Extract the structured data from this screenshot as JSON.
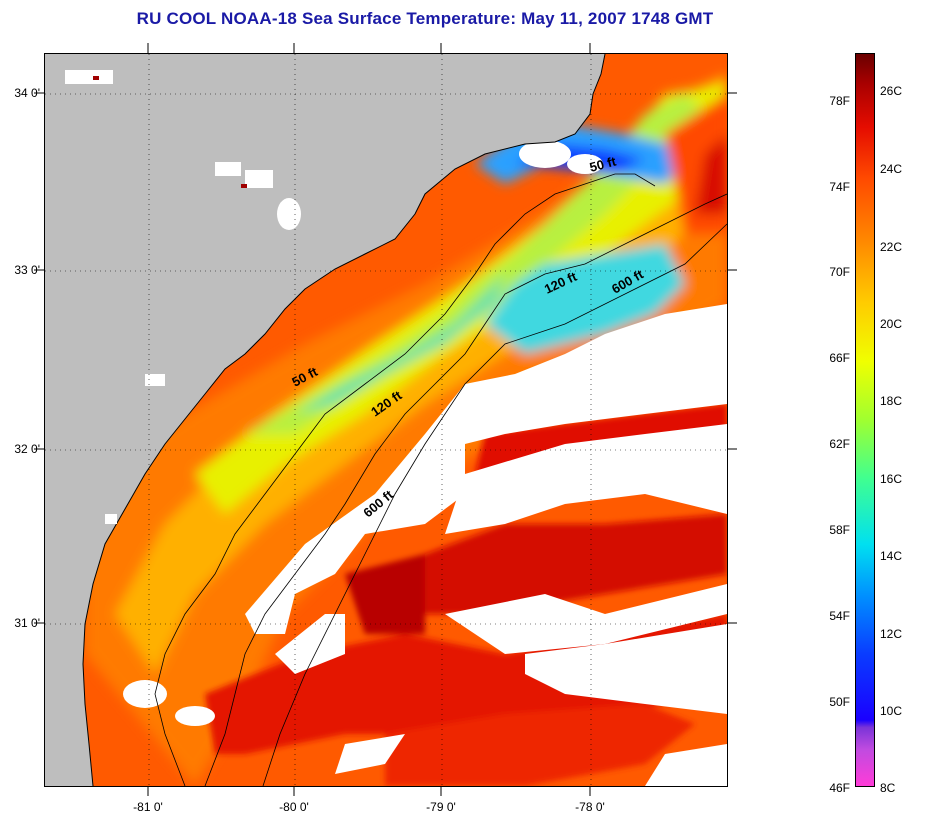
{
  "title": "RU COOL  NOAA-18  Sea Surface Temperature:  May 11, 2007 1748 GMT",
  "latitude_labels": [
    "34 0'",
    "33 0'",
    "32 0'",
    "31 0'"
  ],
  "longitude_labels": [
    "-81 0'",
    "-80 0'",
    "-79 0'",
    "-78 0'"
  ],
  "isobath_labels": {
    "fifty_north": "50 ft",
    "fifty_south": "50 ft",
    "onetwenty_north": "120 ft",
    "onetwenty_south": "120 ft",
    "sixhundred_north": "600 ft",
    "sixhundred_south": "600 ft"
  },
  "colorbar": {
    "fahrenheit_labels": [
      "78F",
      "74F",
      "70F",
      "66F",
      "62F",
      "58F",
      "54F",
      "50F",
      "46F"
    ],
    "celsius_labels": [
      "26C",
      "24C",
      "22C",
      "20C",
      "18C",
      "16C",
      "14C",
      "12C",
      "10C",
      "8C"
    ],
    "range_celsius": [
      8,
      27
    ],
    "colors": {
      "cold": "#ff3cd8",
      "blue": "#1a00ff",
      "cyan": "#00e0f0",
      "yellow": "#f0ff00",
      "orange": "#ff8c00",
      "red": "#e50c00",
      "dark_red": "#6a0000"
    }
  },
  "map_colors": {
    "land": "#bebebe",
    "cloud": "#ffffff"
  }
}
